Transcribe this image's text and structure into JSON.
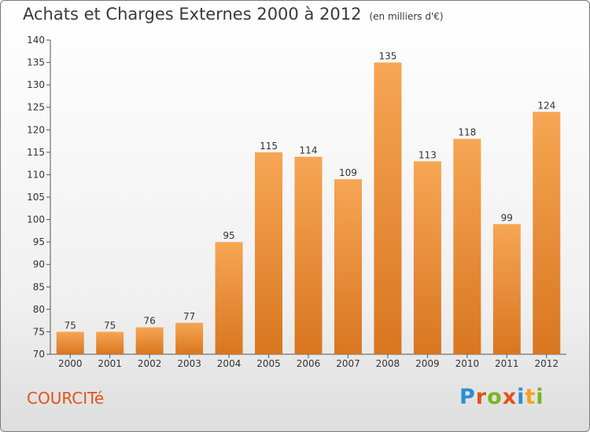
{
  "title": "Achats et Charges Externes 2000 à 2012",
  "subtitle": "(en milliers d'€)",
  "commune": "COURCITé",
  "logo": {
    "letters": [
      "P",
      "r",
      "o",
      "x",
      "i",
      "t",
      "i"
    ],
    "colors": [
      "#2a8fd6",
      "#e0531a",
      "#7ab51d",
      "#e0531a",
      "#2a8fd6",
      "#f2a31b",
      "#7ab51d"
    ]
  },
  "colors": {
    "bar_light": "#f6a654",
    "bar_dark": "#d97620",
    "text": "#333333",
    "commune": "#e0531a"
  },
  "chart_data": {
    "type": "bar",
    "title": "Achats et Charges Externes 2000 à 2012",
    "subtitle": "(en milliers d'€)",
    "categories": [
      "2000",
      "2001",
      "2002",
      "2003",
      "2004",
      "2005",
      "2006",
      "2007",
      "2008",
      "2009",
      "2010",
      "2011",
      "2012"
    ],
    "values": [
      75,
      75,
      76,
      77,
      95,
      115,
      114,
      109,
      135,
      113,
      118,
      99,
      124
    ],
    "ylim": [
      70,
      140
    ],
    "yticks": [
      70,
      75,
      80,
      85,
      90,
      95,
      100,
      105,
      110,
      115,
      120,
      125,
      130,
      135,
      140
    ],
    "grid": false,
    "data_labels": true
  }
}
